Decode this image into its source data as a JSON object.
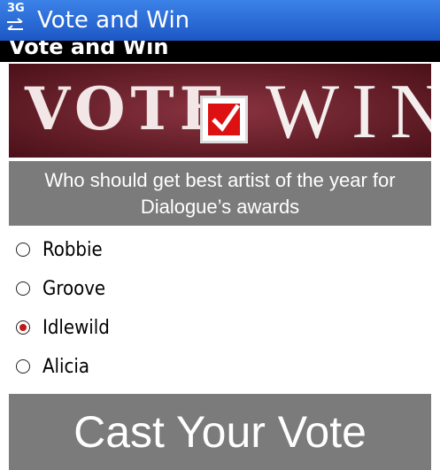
{
  "status_bar": {
    "network": "3G",
    "title": "Vote and Win"
  },
  "header": {
    "title": "Vote and Win"
  },
  "banner": {
    "left": "VOTE",
    "right": "WIN"
  },
  "question": "Who should get best artist of the year for Dialogue’s awards",
  "options": [
    "Robbie",
    "Groove",
    "Idlewild",
    "Alicia"
  ],
  "selected_index": 2,
  "button": "Cast Your Vote"
}
